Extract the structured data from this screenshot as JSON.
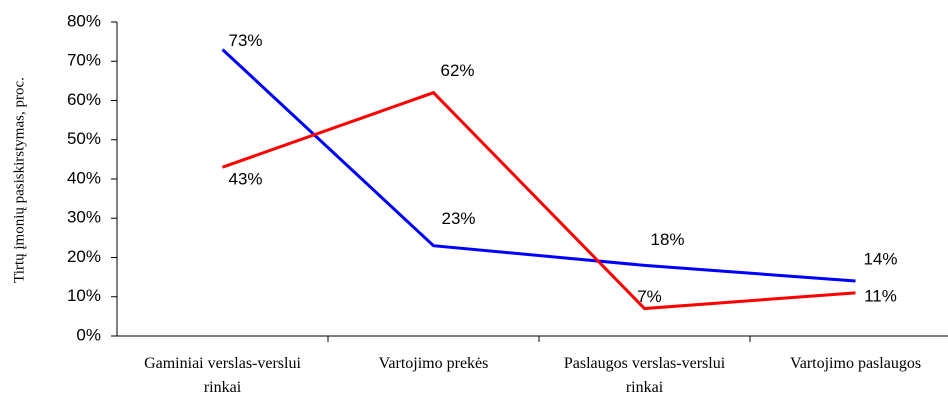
{
  "chart_data": {
    "type": "line",
    "y_label": "Tirtų įmonių pasiskirstymas, proc.",
    "categories": [
      "Gaminiai verslas-verslui rinkai",
      "Vartojimo prekės",
      "Paslaugos verslas-verslui rinkai",
      "Vartojimo paslaugos"
    ],
    "series": [
      {
        "color": "#0000ff",
        "values": [
          73,
          23,
          18,
          14
        ],
        "value_labels": [
          "73%",
          "23%",
          "18%",
          "14%"
        ]
      },
      {
        "color": "#ff0000",
        "values": [
          43,
          62,
          7,
          11
        ],
        "value_labels": [
          "43%",
          "62%",
          "7%",
          "11%"
        ]
      }
    ],
    "ylim": [
      0,
      80
    ],
    "yticks": [
      {
        "value": 0,
        "label": "0%"
      },
      {
        "value": 10,
        "label": "10%"
      },
      {
        "value": 20,
        "label": "20%"
      },
      {
        "value": 30,
        "label": "30%"
      },
      {
        "value": 40,
        "label": "40%"
      },
      {
        "value": 50,
        "label": "50%"
      },
      {
        "value": 60,
        "label": "60%"
      },
      {
        "value": 70,
        "label": "70%"
      },
      {
        "value": 80,
        "label": "80%"
      }
    ]
  }
}
